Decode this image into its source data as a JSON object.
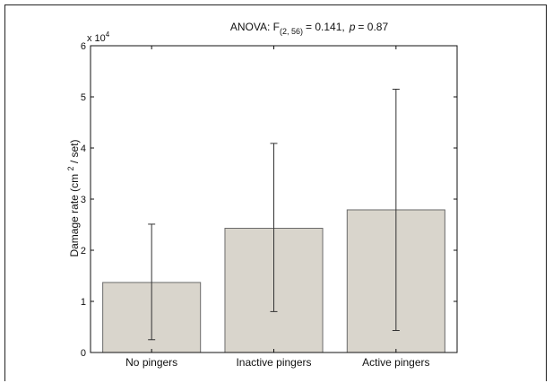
{
  "chart_data": {
    "type": "bar",
    "title_prefix": "ANOVA: F",
    "title_subscript": "(2, 56)",
    "title_stat": "= 0.141,",
    "title_p_label": "p",
    "title_p_value": "= 0.87",
    "ylabel": "Damage rate (cm 2 / set)",
    "ylabel_parts": {
      "before": "Damage rate (cm ",
      "sup": "2",
      "after": " / set)"
    },
    "y_multiplier_base": "x 10",
    "y_multiplier_exp": "4",
    "y_scale": 10000,
    "ylim": [
      0,
      6
    ],
    "yticks": [
      "0",
      "1",
      "2",
      "3",
      "4",
      "5",
      "6"
    ],
    "categories": [
      "No pingers",
      "Inactive pingers",
      "Active pingers"
    ],
    "values": [
      1.37,
      2.43,
      2.79
    ],
    "error_low": [
      0.25,
      0.8,
      0.43
    ],
    "error_high": [
      2.51,
      4.09,
      5.15
    ],
    "colors": {
      "bar_fill": "#d9d5cc",
      "bar_stroke": "#6b6b6b",
      "axis": "#111111",
      "error": "#333333"
    }
  }
}
